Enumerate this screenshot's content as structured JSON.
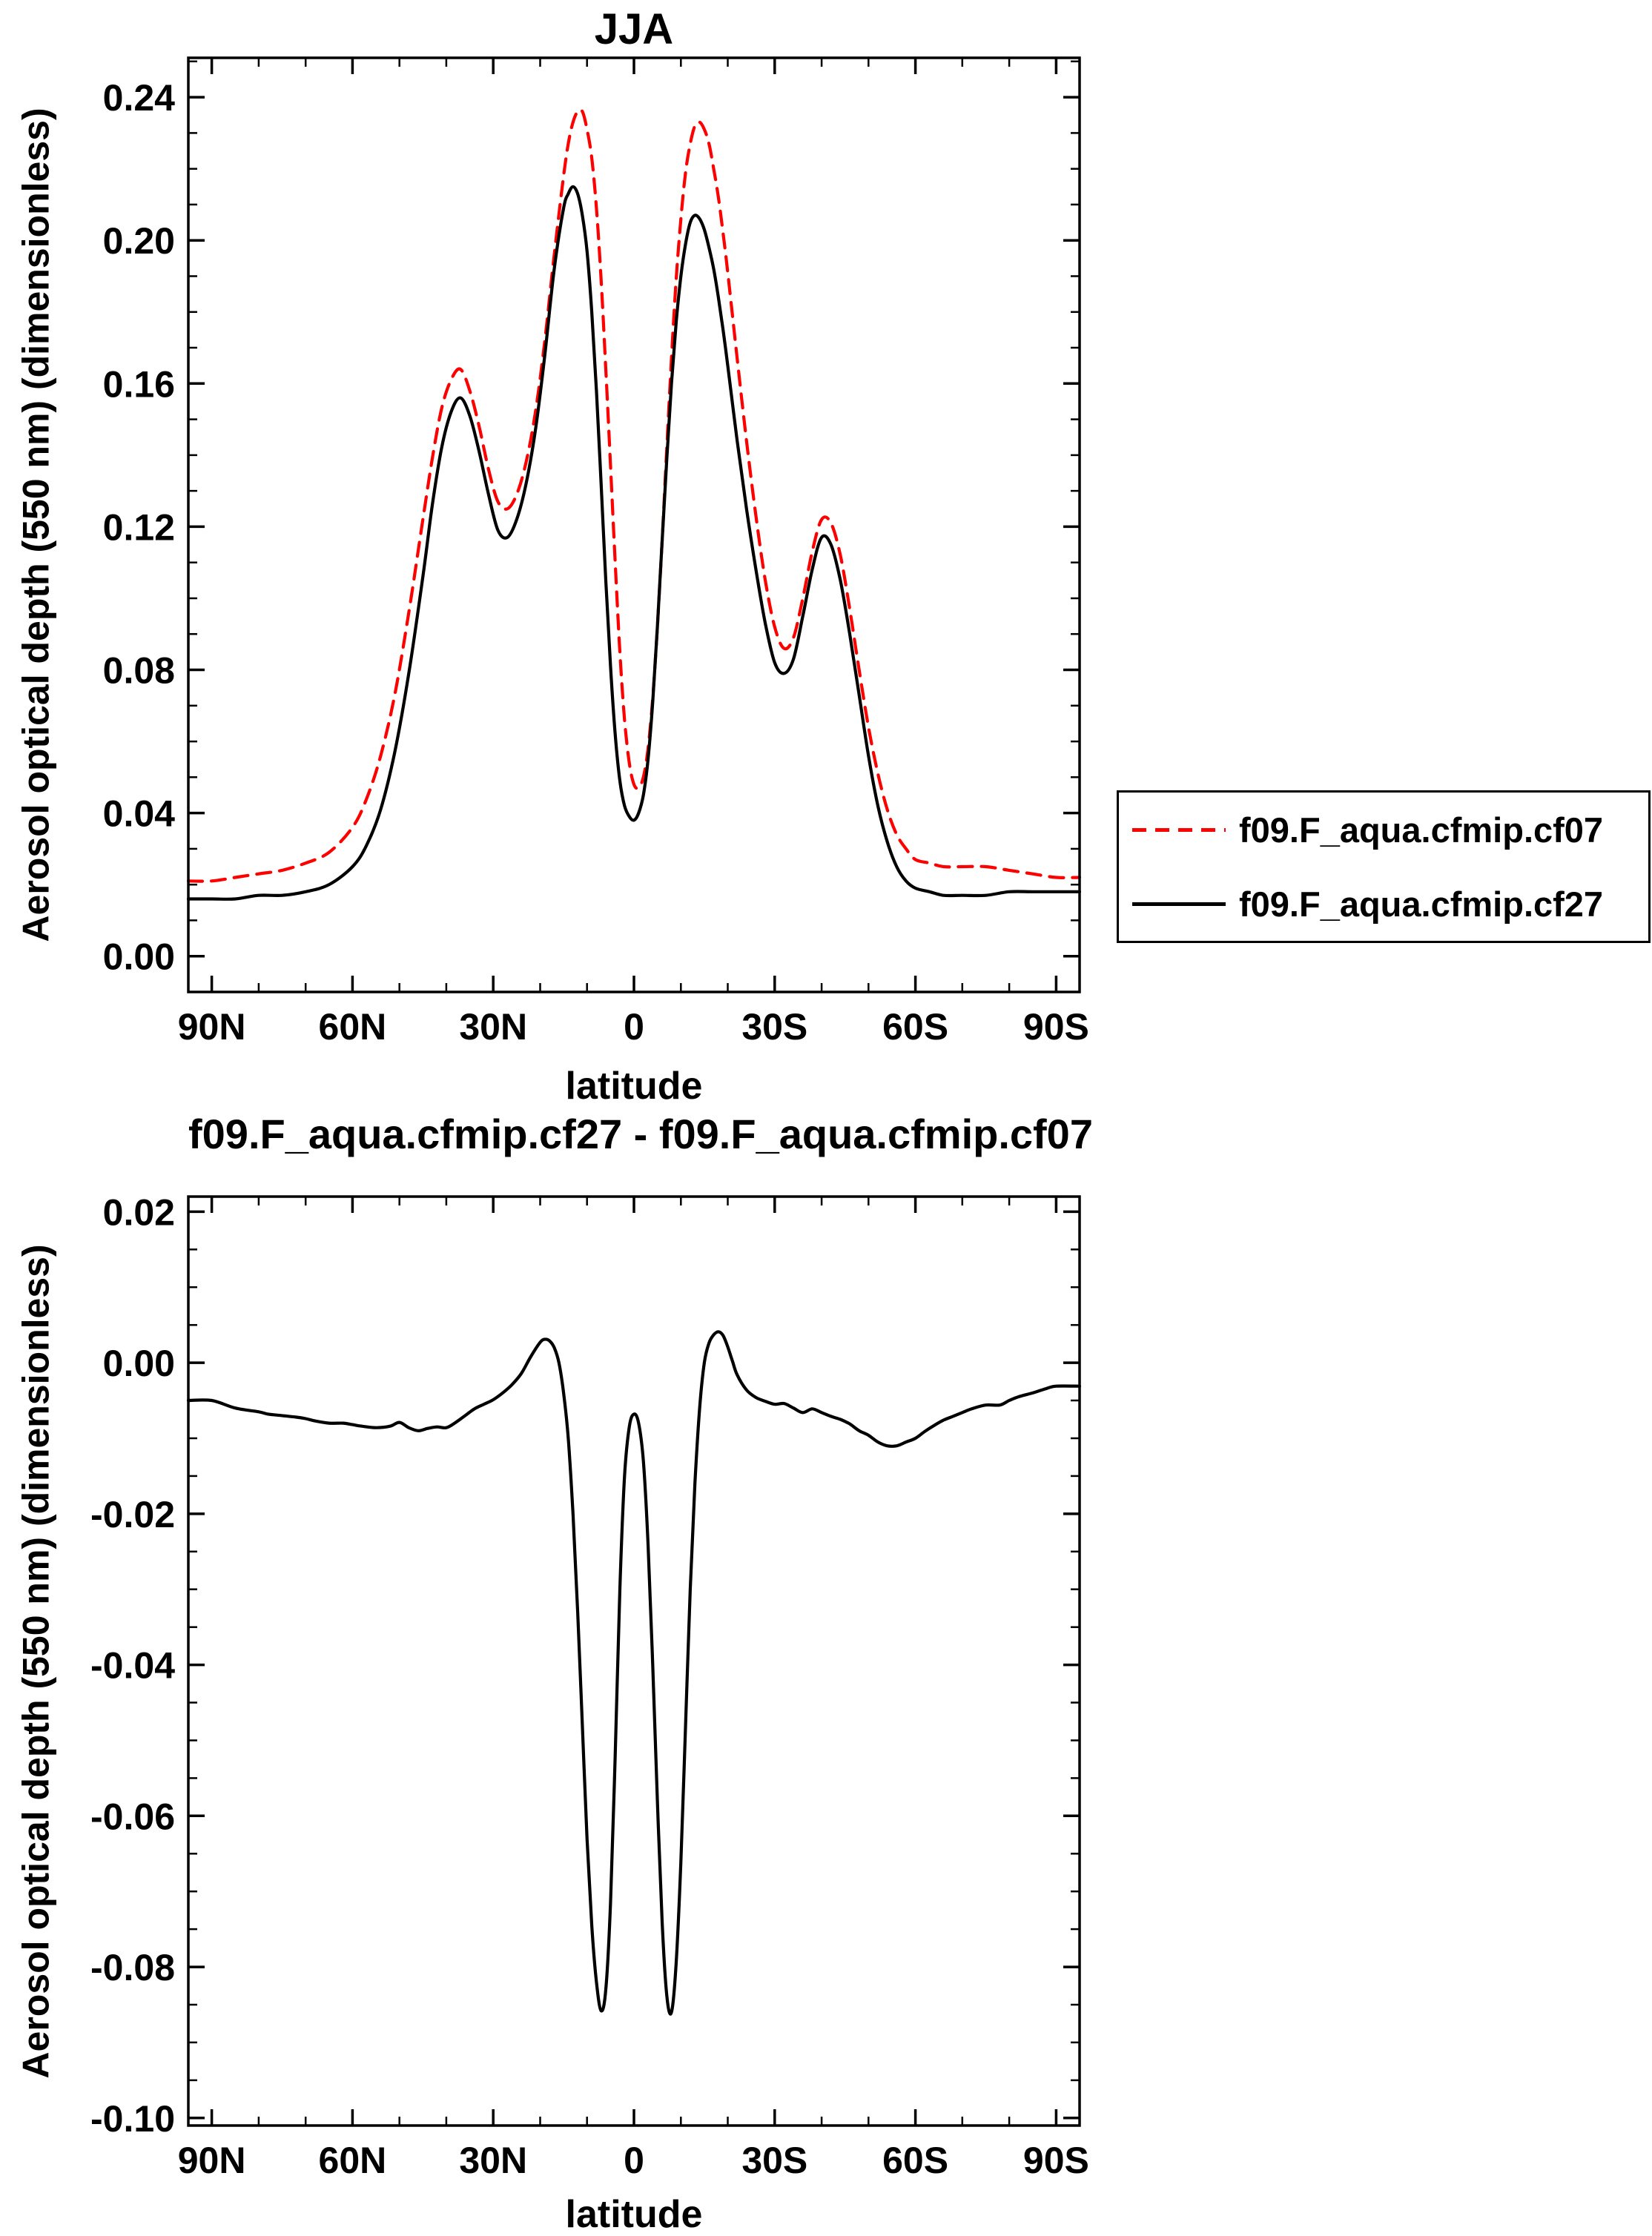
{
  "figure": {
    "background": "#ffffff",
    "frame_color": "#000000",
    "text_color": "#000000"
  },
  "chart_data": [
    {
      "type": "line",
      "title": "JJA",
      "xlabel": "latitude",
      "ylabel": "Aerosol optical depth (550 nm) (dimensionless)",
      "xlim": [
        95,
        -95
      ],
      "ylim": [
        -0.01,
        0.251
      ],
      "grid": false,
      "legend_position": "outside-right",
      "x_ticks": {
        "values": [
          90,
          60,
          30,
          0,
          -30,
          -60,
          -90
        ],
        "labels": [
          "90N",
          "60N",
          "30N",
          "0",
          "30S",
          "60S",
          "90S"
        ],
        "minor_step": 10
      },
      "y_ticks": {
        "values": [
          0.0,
          0.04,
          0.08,
          0.12,
          0.16,
          0.2,
          0.24
        ],
        "labels": [
          "0.00",
          "0.04",
          "0.08",
          "0.12",
          "0.16",
          "0.20",
          "0.24"
        ],
        "minor_step": 0.01
      },
      "x": [
        90,
        85,
        80,
        75,
        70,
        65,
        60,
        57,
        54,
        51,
        48,
        45,
        43,
        41,
        39,
        37,
        35,
        33,
        31,
        29,
        27,
        25,
        23,
        21,
        19,
        17,
        15,
        14,
        13,
        12,
        11,
        10,
        9,
        8,
        7,
        6,
        5,
        4,
        3,
        2,
        1,
        0,
        -1,
        -2,
        -3,
        -4,
        -5,
        -6,
        -7,
        -8,
        -9,
        -10,
        -11,
        -12,
        -13,
        -14,
        -15,
        -16,
        -17,
        -18,
        -19,
        -20,
        -22,
        -24,
        -26,
        -28,
        -30,
        -32,
        -34,
        -36,
        -38,
        -40,
        -42,
        -44,
        -46,
        -48,
        -50,
        -52,
        -54,
        -56,
        -58,
        -60,
        -63,
        -66,
        -70,
        -75,
        -80,
        -85,
        -90
      ],
      "series": [
        {
          "name": "f09.F_aqua.cfmip.cf07",
          "color": "#ff0000",
          "line_style": "dashed",
          "values": [
            0.021,
            0.022,
            0.023,
            0.024,
            0.026,
            0.029,
            0.036,
            0.044,
            0.056,
            0.073,
            0.096,
            0.122,
            0.139,
            0.153,
            0.161,
            0.164,
            0.158,
            0.148,
            0.136,
            0.127,
            0.125,
            0.129,
            0.138,
            0.152,
            0.172,
            0.196,
            0.218,
            0.227,
            0.233,
            0.236,
            0.236,
            0.231,
            0.223,
            0.209,
            0.189,
            0.164,
            0.137,
            0.11,
            0.085,
            0.066,
            0.054,
            0.048,
            0.047,
            0.05,
            0.058,
            0.072,
            0.092,
            0.116,
            0.142,
            0.167,
            0.189,
            0.206,
            0.219,
            0.227,
            0.232,
            0.233,
            0.231,
            0.227,
            0.22,
            0.212,
            0.202,
            0.191,
            0.167,
            0.144,
            0.123,
            0.105,
            0.092,
            0.086,
            0.089,
            0.1,
            0.113,
            0.122,
            0.121,
            0.112,
            0.097,
            0.08,
            0.064,
            0.051,
            0.041,
            0.034,
            0.03,
            0.027,
            0.026,
            0.025,
            0.025,
            0.025,
            0.024,
            0.023,
            0.022
          ]
        },
        {
          "name": "f09.F_aqua.cfmip.cf27",
          "color": "#000000",
          "line_style": "solid",
          "values": [
            0.016,
            0.016,
            0.017,
            0.017,
            0.018,
            0.02,
            0.025,
            0.031,
            0.041,
            0.057,
            0.079,
            0.106,
            0.126,
            0.142,
            0.152,
            0.156,
            0.151,
            0.141,
            0.129,
            0.119,
            0.117,
            0.122,
            0.132,
            0.147,
            0.168,
            0.192,
            0.209,
            0.213,
            0.215,
            0.213,
            0.207,
            0.197,
            0.18,
            0.158,
            0.132,
            0.105,
            0.081,
            0.062,
            0.049,
            0.042,
            0.039,
            0.038,
            0.04,
            0.045,
            0.055,
            0.071,
            0.092,
            0.116,
            0.139,
            0.16,
            0.177,
            0.19,
            0.199,
            0.205,
            0.207,
            0.206,
            0.203,
            0.198,
            0.192,
            0.184,
            0.175,
            0.165,
            0.144,
            0.125,
            0.108,
            0.093,
            0.082,
            0.079,
            0.083,
            0.095,
            0.108,
            0.117,
            0.115,
            0.105,
            0.09,
            0.073,
            0.056,
            0.042,
            0.032,
            0.025,
            0.021,
            0.019,
            0.018,
            0.017,
            0.017,
            0.017,
            0.018,
            0.018,
            0.018
          ]
        }
      ]
    },
    {
      "type": "line",
      "title": "f09.F_aqua.cfmip.cf27 - f09.F_aqua.cfmip.cf07",
      "xlabel": "latitude",
      "ylabel": "Aerosol optical depth (550 nm) (dimensionless)",
      "xlim": [
        95,
        -95
      ],
      "ylim": [
        -0.101,
        0.022
      ],
      "grid": false,
      "x_ticks": {
        "values": [
          90,
          60,
          30,
          0,
          -30,
          -60,
          -90
        ],
        "labels": [
          "90N",
          "60N",
          "30N",
          "0",
          "30S",
          "60S",
          "90S"
        ],
        "minor_step": 10
      },
      "y_ticks": {
        "values": [
          0.02,
          0.0,
          -0.02,
          -0.04,
          -0.06,
          -0.08,
          -0.1
        ],
        "labels": [
          "0.02",
          "0.00",
          "-0.02",
          "-0.04",
          "-0.06",
          "-0.08",
          "-0.10"
        ],
        "minor_step": 0.005
      },
      "x": [
        90,
        85,
        80,
        78,
        75,
        72,
        70,
        68,
        65,
        62,
        60,
        58,
        55,
        52,
        50,
        48,
        46,
        44,
        42,
        40,
        38,
        36,
        34,
        32,
        30,
        28,
        26,
        24,
        22,
        20,
        19,
        18,
        17,
        16,
        15,
        14,
        13,
        12,
        11,
        10,
        9,
        8,
        7,
        6,
        5,
        4,
        3,
        2,
        1,
        0,
        -1,
        -2,
        -3,
        -4,
        -5,
        -6,
        -7,
        -8,
        -9,
        -10,
        -11,
        -12,
        -13,
        -14,
        -15,
        -16,
        -17,
        -18,
        -19,
        -20,
        -21,
        -22,
        -24,
        -26,
        -28,
        -30,
        -32,
        -34,
        -36,
        -38,
        -40,
        -42,
        -44,
        -46,
        -48,
        -50,
        -52,
        -54,
        -56,
        -58,
        -60,
        -62,
        -64,
        -66,
        -68,
        -70,
        -72,
        -75,
        -78,
        -80,
        -82,
        -85,
        -88,
        -90
      ],
      "series": [
        {
          "color": "#000000",
          "line_style": "solid",
          "values": [
            -0.005,
            -0.006,
            -0.0065,
            -0.0068,
            -0.007,
            -0.0072,
            -0.0074,
            -0.0077,
            -0.008,
            -0.008,
            -0.0082,
            -0.0084,
            -0.0086,
            -0.0084,
            -0.0079,
            -0.0086,
            -0.009,
            -0.0087,
            -0.0085,
            -0.0086,
            -0.0079,
            -0.007,
            -0.0061,
            -0.0055,
            -0.0049,
            -0.004,
            -0.0029,
            -0.0014,
            0.0008,
            0.0027,
            0.0031,
            0.0029,
            0.002,
            0.0,
            -0.004,
            -0.01,
            -0.02,
            -0.033,
            -0.048,
            -0.063,
            -0.0745,
            -0.082,
            -0.0858,
            -0.083,
            -0.0715,
            -0.052,
            -0.03,
            -0.015,
            -0.0085,
            -0.0068,
            -0.008,
            -0.013,
            -0.024,
            -0.04,
            -0.058,
            -0.074,
            -0.0838,
            -0.086,
            -0.0795,
            -0.066,
            -0.048,
            -0.03,
            -0.016,
            -0.006,
            0.0,
            0.0026,
            0.0037,
            0.0041,
            0.0036,
            0.0021,
            0.0002,
            -0.0016,
            -0.0036,
            -0.0046,
            -0.0051,
            -0.0055,
            -0.0054,
            -0.006,
            -0.0066,
            -0.0061,
            -0.0066,
            -0.0071,
            -0.0075,
            -0.0081,
            -0.009,
            -0.0096,
            -0.0105,
            -0.011,
            -0.011,
            -0.0105,
            -0.01,
            -0.0091,
            -0.0083,
            -0.0076,
            -0.0071,
            -0.0066,
            -0.0061,
            -0.0056,
            -0.0056,
            -0.005,
            -0.0045,
            -0.004,
            -0.0034,
            -0.0031
          ]
        }
      ]
    }
  ]
}
